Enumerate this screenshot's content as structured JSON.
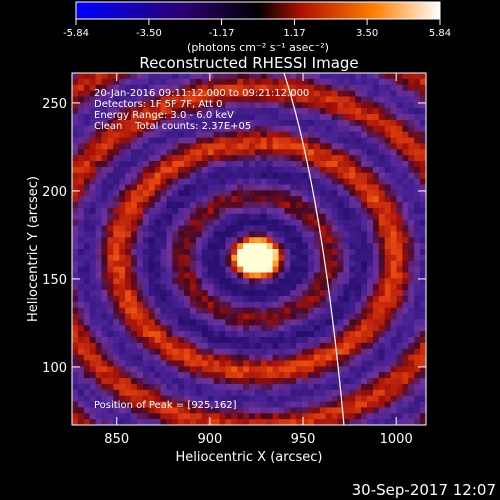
{
  "colorbar": {
    "ticks": [
      "-5.84",
      "-3.50",
      "-1.17",
      "1.17",
      "3.50",
      "5.84"
    ],
    "tick_values": [
      -5.84,
      -3.5,
      -1.17,
      1.17,
      3.5,
      5.84
    ],
    "range": [
      -5.84,
      5.84
    ],
    "units_label": "(photons cm⁻² s⁻¹ asec⁻²)",
    "colors": [
      "#0000ff",
      "#2a0070",
      "#000000",
      "#b01000",
      "#ff8000",
      "#ffffff"
    ]
  },
  "chart_data": {
    "type": "heatmap",
    "title": "Reconstructed RHESSI Image",
    "xlabel": "Heliocentric X (arcsec)",
    "ylabel": "Heliocentric Y (arcsec)",
    "xlim": [
      826,
      1016
    ],
    "ylim": [
      67,
      267
    ],
    "xticks": [
      "850",
      "900",
      "950",
      "1000"
    ],
    "xtick_values": [
      850,
      900,
      950,
      1000
    ],
    "yticks": [
      "100",
      "150",
      "200",
      "250"
    ],
    "ytick_values": [
      100,
      150,
      200,
      250
    ],
    "peak": [
      925,
      162
    ],
    "annotations": [
      "20-Jan-2016 09:11:12.000 to 09:21:12.000",
      "Detectors: 1F 5F 7F, Att 0",
      "Energy Range: 3.0 - 6.0 keV",
      "Clean    Total counts: 2.37E+05"
    ],
    "peak_label": "Position of Peak = [925,162]"
  },
  "footer": {
    "timestamp": "30-Sep-2017 12:07"
  }
}
